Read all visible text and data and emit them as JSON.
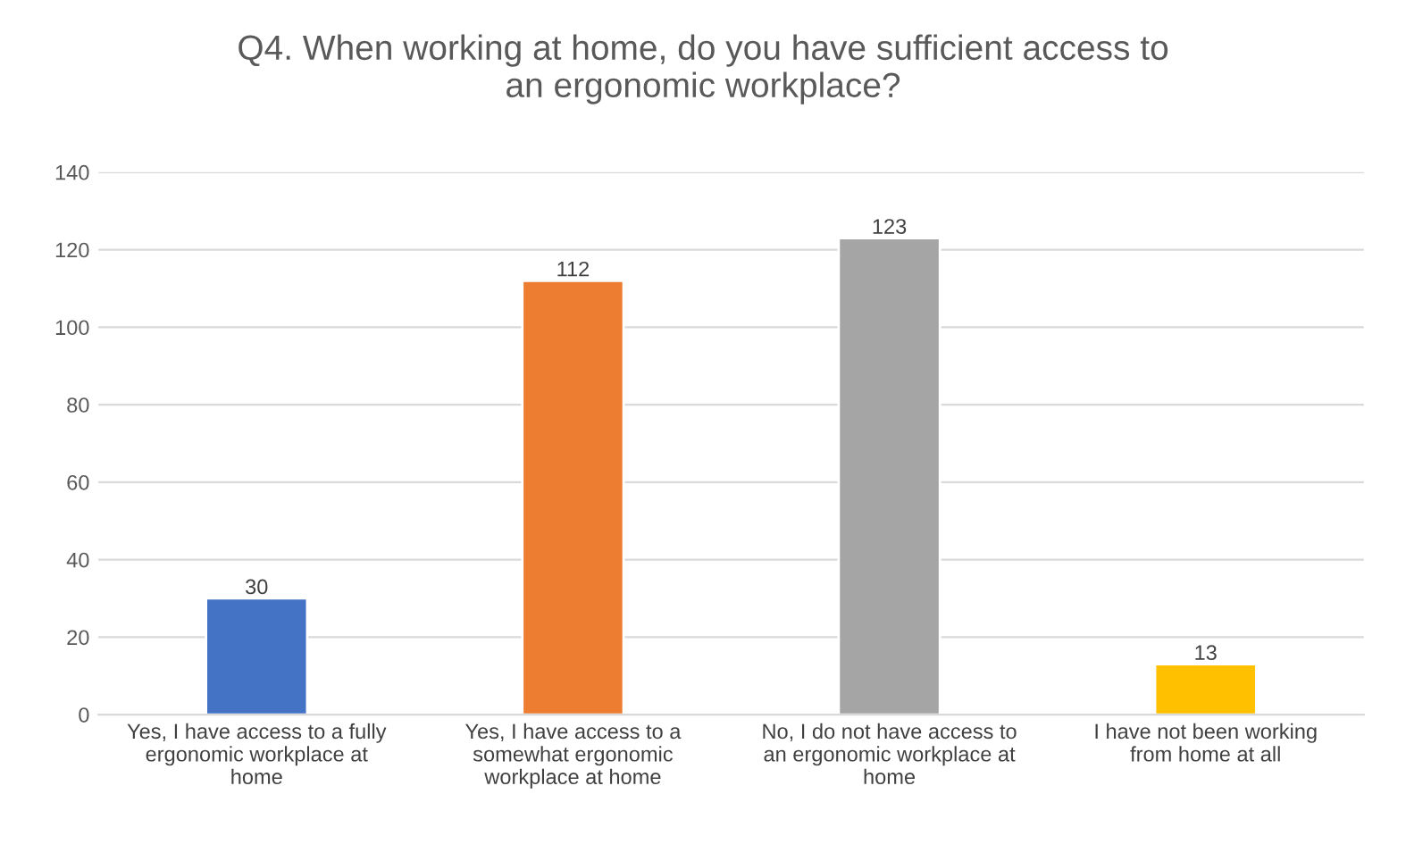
{
  "chart_data": {
    "type": "bar",
    "title": "Q4. When working at home, do you have sufficient access to\nan ergonomic workplace?",
    "categories": [
      "Yes, I have access to a fully\nergonomic workplace at\nhome",
      "Yes, I have access to a\nsomewhat ergonomic\nworkplace at home",
      "No, I do not have access to\nan ergonomic workplace at\nhome",
      "I have not been working\nfrom home at all"
    ],
    "values": [
      30,
      112,
      123,
      13
    ],
    "colors": [
      "#4472c4",
      "#ed7d31",
      "#a5a5a5",
      "#ffc000"
    ],
    "ylim": [
      0,
      140
    ],
    "yticks": [
      0,
      20,
      40,
      60,
      80,
      100,
      120,
      140
    ],
    "grid": "y",
    "data_labels": true,
    "legend": false
  }
}
